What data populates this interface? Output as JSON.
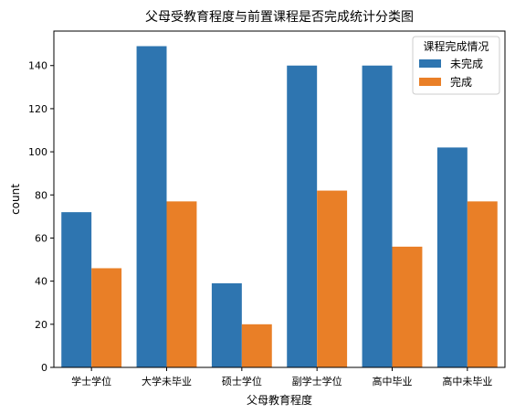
{
  "chart_data": {
    "type": "bar",
    "title": "父母受教育程度与前置课程是否完成统计分类图",
    "xlabel": "父母教育程度",
    "ylabel": "count",
    "categories": [
      "学士学位",
      "大学未毕业",
      "硕士学位",
      "副学士学位",
      "高中毕业",
      "高中未毕业"
    ],
    "series": [
      {
        "name": "未完成",
        "values": [
          72,
          149,
          39,
          140,
          140,
          102
        ],
        "color": "#2e75b0"
      },
      {
        "name": "完成",
        "values": [
          46,
          77,
          20,
          82,
          56,
          77
        ],
        "color": "#e97f27"
      }
    ],
    "ylim": [
      0,
      156
    ],
    "yticks": [
      0,
      20,
      40,
      60,
      80,
      100,
      120,
      140
    ],
    "legend": {
      "title": "课程完成情况",
      "placement": "top-right"
    },
    "grid": false
  }
}
